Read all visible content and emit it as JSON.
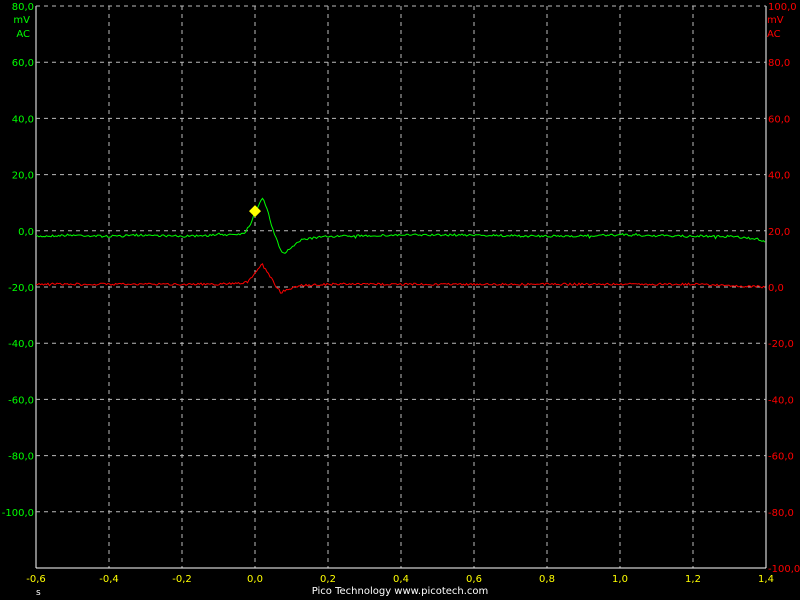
{
  "footer": {
    "text": "Pico Technology   www.picotech.com"
  },
  "chart_data": {
    "type": "line",
    "xlabel": "s",
    "xlim": [
      -0.6,
      1.4
    ],
    "xticks": [
      "-0,6",
      "-0,4",
      "-0,2",
      "0,0",
      "0,2",
      "0,4",
      "0,6",
      "0,8",
      "1,0",
      "1,2",
      "1,4"
    ],
    "left_axis": {
      "ylim": [
        -120,
        80
      ],
      "unit": "mV",
      "coupling": "AC",
      "ticks": [
        "80,0",
        "60,0",
        "40,0",
        "20,0",
        "0,0",
        "-20,0",
        "-40,0",
        "-60,0",
        "-80,0",
        "-100,0"
      ],
      "color": "#00ff00"
    },
    "right_axis": {
      "ylim": [
        -100,
        100
      ],
      "unit": "mV",
      "coupling": "AC",
      "ticks": [
        "100,0",
        "80,0",
        "60,0",
        "40,0",
        "20,0",
        "0,0",
        "-20,0",
        "-40,0",
        "-60,0",
        "-80,0",
        "-100,0"
      ],
      "color": "#ff0000"
    },
    "grid": true,
    "trigger_marker": {
      "x": 0.0,
      "y": 7.0,
      "color": "#ffff00"
    },
    "series": [
      {
        "axis": "left",
        "color": "#00ff00",
        "x": [
          -0.6,
          -0.5,
          -0.4,
          -0.3,
          -0.2,
          -0.1,
          -0.03,
          -0.01,
          0.0,
          0.01,
          0.02,
          0.03,
          0.05,
          0.07,
          0.08,
          0.1,
          0.13,
          0.2,
          0.4,
          0.6,
          0.8,
          1.0,
          1.2,
          1.3,
          1.38,
          1.4
        ],
        "y": [
          -2,
          -1.5,
          -2,
          -1.5,
          -2,
          -1.5,
          -1,
          3,
          7,
          9,
          12,
          9,
          0,
          -7,
          -8,
          -6,
          -3,
          -2,
          -1.5,
          -1.5,
          -2,
          -1.5,
          -2,
          -2,
          -3,
          -4
        ]
      },
      {
        "axis": "right",
        "color": "#ff0000",
        "x": [
          -0.6,
          -0.5,
          -0.4,
          -0.3,
          -0.2,
          -0.1,
          -0.03,
          -0.01,
          0.0,
          0.01,
          0.02,
          0.03,
          0.05,
          0.07,
          0.09,
          0.12,
          0.2,
          0.4,
          0.6,
          0.8,
          1.0,
          1.2,
          1.3,
          1.4
        ],
        "y": [
          1,
          1,
          1,
          1,
          1,
          1,
          1.5,
          3,
          5,
          7,
          8,
          6,
          2,
          -2,
          -1,
          0.5,
          1,
          1,
          1,
          1,
          1,
          1,
          0.5,
          0
        ]
      }
    ]
  }
}
